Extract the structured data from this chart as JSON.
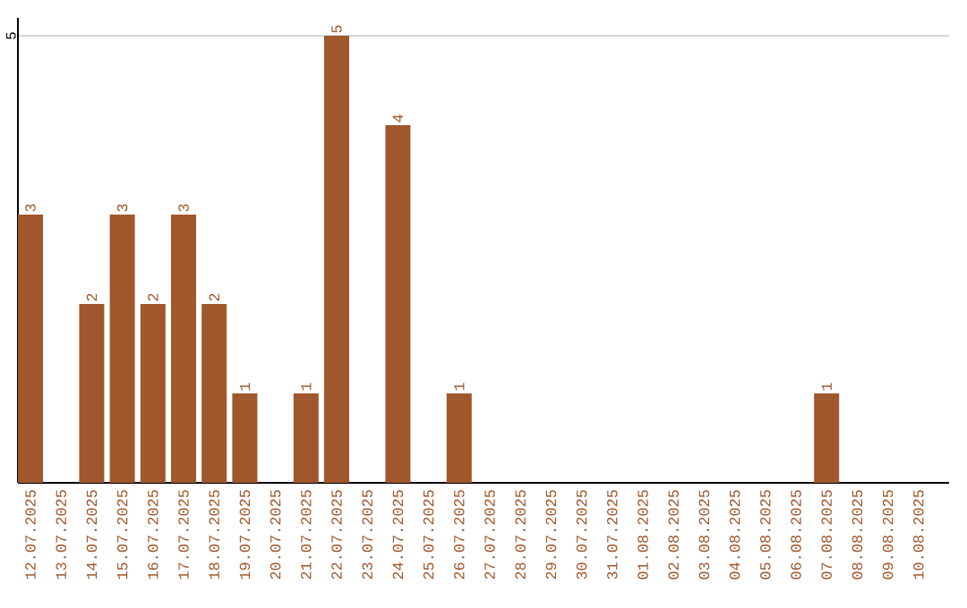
{
  "chart_data": {
    "type": "bar",
    "categories": [
      "12.07.2025",
      "13.07.2025",
      "14.07.2025",
      "15.07.2025",
      "16.07.2025",
      "17.07.2025",
      "18.07.2025",
      "19.07.2025",
      "20.07.2025",
      "21.07.2025",
      "22.07.2025",
      "23.07.2025",
      "24.07.2025",
      "25.07.2025",
      "26.07.2025",
      "27.07.2025",
      "28.07.2025",
      "29.07.2025",
      "30.07.2025",
      "31.07.2025",
      "01.08.2025",
      "02.08.2025",
      "03.08.2025",
      "04.08.2025",
      "05.08.2025",
      "06.08.2025",
      "07.08.2025",
      "08.08.2025",
      "09.08.2025",
      "10.08.2025"
    ],
    "values": [
      3,
      0,
      2,
      3,
      2,
      3,
      2,
      1,
      0,
      1,
      5,
      0,
      4,
      0,
      1,
      0,
      0,
      0,
      0,
      0,
      0,
      0,
      0,
      0,
      0,
      0,
      1,
      0,
      0,
      0
    ],
    "value_labels": [
      "3",
      null,
      "2",
      "3",
      "2",
      "3",
      "2",
      "1",
      null,
      "1",
      "5",
      null,
      "4",
      null,
      "1",
      null,
      null,
      null,
      null,
      null,
      null,
      null,
      null,
      null,
      null,
      null,
      "1",
      null,
      null,
      null
    ],
    "color": "#a0572b",
    "ylim": [
      0,
      5.2
    ],
    "yticks": [
      5
    ],
    "grid": "y"
  }
}
